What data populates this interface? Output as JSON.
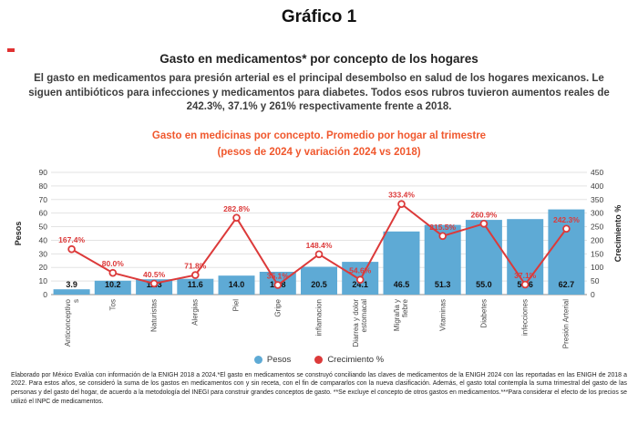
{
  "page": {
    "main_title": "Gráfico 1",
    "subtitle": "Gasto en medicamentos* por concepto de los hogares",
    "description": "El gasto en medicamentos para presión arterial es el principal desembolso en salud de los hogares mexicanos. Le siguen antibióticos para infecciones y medicamentos para diabetes. Todos esos rubros tuvieron aumentos reales de 242.3%, 37.1% y 261% respectivamente frente a 2018.",
    "footnote": "Elaborado por México Evalúa con información de la ENIGH 2018 a 2024.*El gasto en medicamentos se construyó conciliando las claves de medicamentos de la ENIGH 2024 con las reportadas en las ENIGH de 2018 a 2022. Para estos años, se consideró la suma de los gastos en medicamentos con y sin receta, con el fin de compararlos con la nueva clasificación. Además, el gasto total contempla la suma trimestral del gasto de las personas y del gasto del hogar, de acuerdo a la metodología del INEGI para construir grandes conceptos de gasto. **Se excluye el concepto de otros gastos en medicamentos.***Para considerar el efecto de los precios se utilizó el INPC de medicamentos."
  },
  "colors": {
    "chart_title": "#F0582E",
    "red_mark": "#E03131"
  },
  "chart_data": {
    "type": "bar",
    "title_line1": "Gasto en medicinas por concepto. Promedio por hogar al trimestre",
    "title_line2": "(pesos de 2024 y variación 2024 vs 2018)",
    "categories": [
      "Anticonceptivos",
      "Tos",
      "Naturistas",
      "Alergias",
      "Piel",
      "Gripe",
      "inflamacion",
      "Diarrea y dolor estomacal",
      "Migraña y fiebre",
      "Vitaminas",
      "Diabetes",
      "infecciones",
      "Presión Arterial"
    ],
    "series": [
      {
        "name": "Pesos",
        "type": "bar",
        "axis": "left",
        "color": "#5EAAD5",
        "values": [
          3.9,
          10.2,
          11.3,
          11.6,
          14.0,
          16.8,
          20.5,
          24.1,
          46.5,
          51.3,
          55.0,
          55.6,
          62.7
        ]
      },
      {
        "name": "Crecimiento %",
        "type": "line",
        "axis": "right",
        "color": "#DC3A3A",
        "values": [
          167.4,
          80.0,
          40.5,
          71.8,
          282.8,
          35.1,
          148.4,
          54.6,
          333.4,
          215.5,
          260.9,
          37.1,
          242.3
        ]
      }
    ],
    "ylabel_left": "Pesos",
    "ylabel_right": "Crecimiento %",
    "ylim_left": [
      0,
      90
    ],
    "ytick_step_left": 10,
    "ylim_right": [
      0,
      450
    ],
    "ytick_step_right": 50,
    "grid": true,
    "legend_position": "bottom",
    "bar_label_decimals": 1,
    "line_label_suffix": "%"
  }
}
